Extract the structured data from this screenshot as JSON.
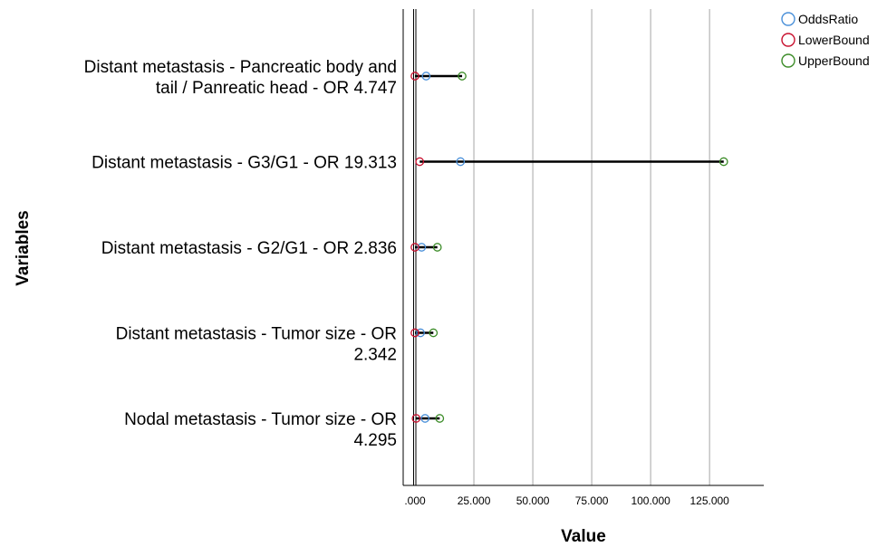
{
  "chart_data": {
    "type": "scatter",
    "orientation": "horizontal",
    "xlabel": "Value",
    "ylabel": "Variables",
    "xlim": [
      -5000,
      148000
    ],
    "xticks": [
      0,
      25000,
      50000,
      75000,
      100000,
      125000
    ],
    "xtick_labels": [
      ".000",
      "25.000",
      "50.000",
      "75.000",
      "100.000",
      "125.000"
    ],
    "reference_line": 0,
    "grid": "vertical",
    "legend_position": "top-right",
    "categories": [
      [
        "Distant metastasis - Pancreatic body and",
        "tail / Panreatic head - OR 4.747"
      ],
      [
        "Distant metastasis - G3/G1 - OR 19.313"
      ],
      [
        "Distant metastasis - G2/G1 - OR 2.836"
      ],
      [
        "Distant metastasis - Tumor size - OR",
        "2.342"
      ],
      [
        "Nodal metastasis - Tumor size - OR",
        "4.295"
      ]
    ],
    "series": [
      {
        "name": "OddsRatio",
        "color": "#4a90d9",
        "values": [
          4747,
          19313,
          2836,
          2342,
          4295
        ]
      },
      {
        "name": "LowerBound",
        "color": "#c8102e",
        "values": [
          0,
          2000,
          0,
          0,
          500
        ]
      },
      {
        "name": "UpperBound",
        "color": "#3c8c28",
        "values": [
          20000,
          131000,
          9500,
          7800,
          10500
        ]
      }
    ]
  }
}
